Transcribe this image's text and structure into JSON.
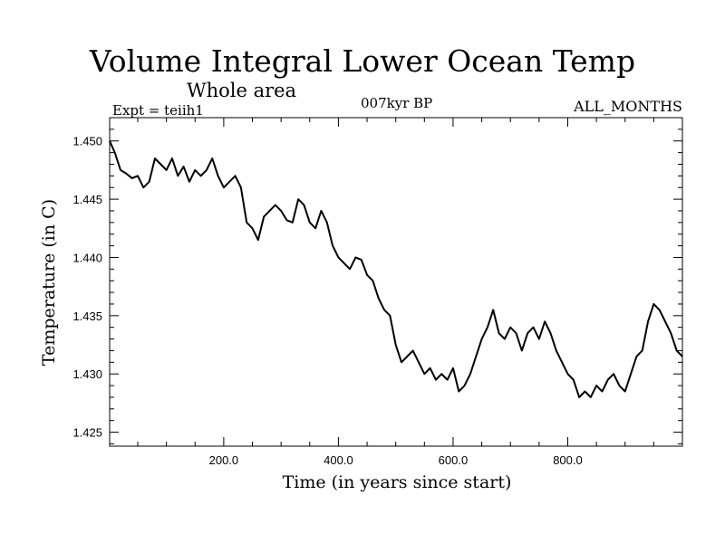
{
  "chart_data": {
    "type": "line",
    "title": "Volume Integral Lower Ocean Temp",
    "subtitle": "Whole area",
    "experiment": "Expt = teiih1",
    "period": "007kyr BP",
    "months": "ALL_MONTHS",
    "xlabel": "Time (in years since start)",
    "ylabel": "Temperature (in C)",
    "xlim": [
      1,
      1000
    ],
    "ylim": [
      1.4238,
      1.452
    ],
    "xticks": [
      {
        "value": 200,
        "label": "200.0"
      },
      {
        "value": 400,
        "label": "400.0"
      },
      {
        "value": 600,
        "label": "600.0"
      },
      {
        "value": 800,
        "label": "800.0"
      }
    ],
    "yticks": [
      {
        "value": 1.425,
        "label": "1.425"
      },
      {
        "value": 1.43,
        "label": "1.430"
      },
      {
        "value": 1.435,
        "label": "1.435"
      },
      {
        "value": 1.44,
        "label": "1.440"
      },
      {
        "value": 1.445,
        "label": "1.445"
      },
      {
        "value": 1.45,
        "label": "1.450"
      }
    ],
    "grid": false,
    "series": [
      {
        "x": [
          1,
          10,
          20,
          30,
          40,
          50,
          60,
          70,
          80,
          90,
          100,
          110,
          120,
          130,
          140,
          150,
          160,
          170,
          180,
          190,
          200,
          210,
          220,
          230,
          240,
          250,
          260,
          270,
          280,
          290,
          300,
          310,
          320,
          330,
          340,
          350,
          360,
          370,
          380,
          390,
          400,
          410,
          420,
          430,
          440,
          450,
          460,
          470,
          480,
          490,
          500,
          510,
          520,
          530,
          540,
          550,
          560,
          570,
          580,
          590,
          600,
          610,
          620,
          630,
          640,
          650,
          660,
          670,
          680,
          690,
          700,
          710,
          720,
          730,
          740,
          750,
          760,
          770,
          780,
          790,
          800,
          810,
          820,
          830,
          840,
          850,
          860,
          870,
          880,
          890,
          900,
          910,
          920,
          930,
          940,
          950,
          960,
          970,
          980,
          990,
          1000
        ],
        "values": [
          1.45,
          1.449,
          1.4475,
          1.4472,
          1.4468,
          1.447,
          1.446,
          1.4465,
          1.4485,
          1.448,
          1.4475,
          1.4485,
          1.447,
          1.4478,
          1.4465,
          1.4475,
          1.447,
          1.4475,
          1.4485,
          1.447,
          1.446,
          1.4465,
          1.447,
          1.446,
          1.443,
          1.4425,
          1.4415,
          1.4435,
          1.444,
          1.4445,
          1.444,
          1.4432,
          1.443,
          1.445,
          1.4445,
          1.443,
          1.4425,
          1.444,
          1.443,
          1.441,
          1.44,
          1.4395,
          1.439,
          1.44,
          1.4398,
          1.4385,
          1.438,
          1.4365,
          1.4355,
          1.435,
          1.4325,
          1.431,
          1.4315,
          1.432,
          1.431,
          1.43,
          1.4305,
          1.4295,
          1.43,
          1.4295,
          1.4305,
          1.4285,
          1.429,
          1.43,
          1.4315,
          1.433,
          1.434,
          1.4355,
          1.4335,
          1.433,
          1.434,
          1.4335,
          1.432,
          1.4335,
          1.434,
          1.433,
          1.4345,
          1.4335,
          1.432,
          1.431,
          1.43,
          1.4295,
          1.428,
          1.4285,
          1.428,
          1.429,
          1.4285,
          1.4295,
          1.43,
          1.429,
          1.4285,
          1.43,
          1.4315,
          1.432,
          1.4345,
          1.436,
          1.4355,
          1.4345,
          1.4335,
          1.432,
          1.4315
        ]
      }
    ]
  }
}
